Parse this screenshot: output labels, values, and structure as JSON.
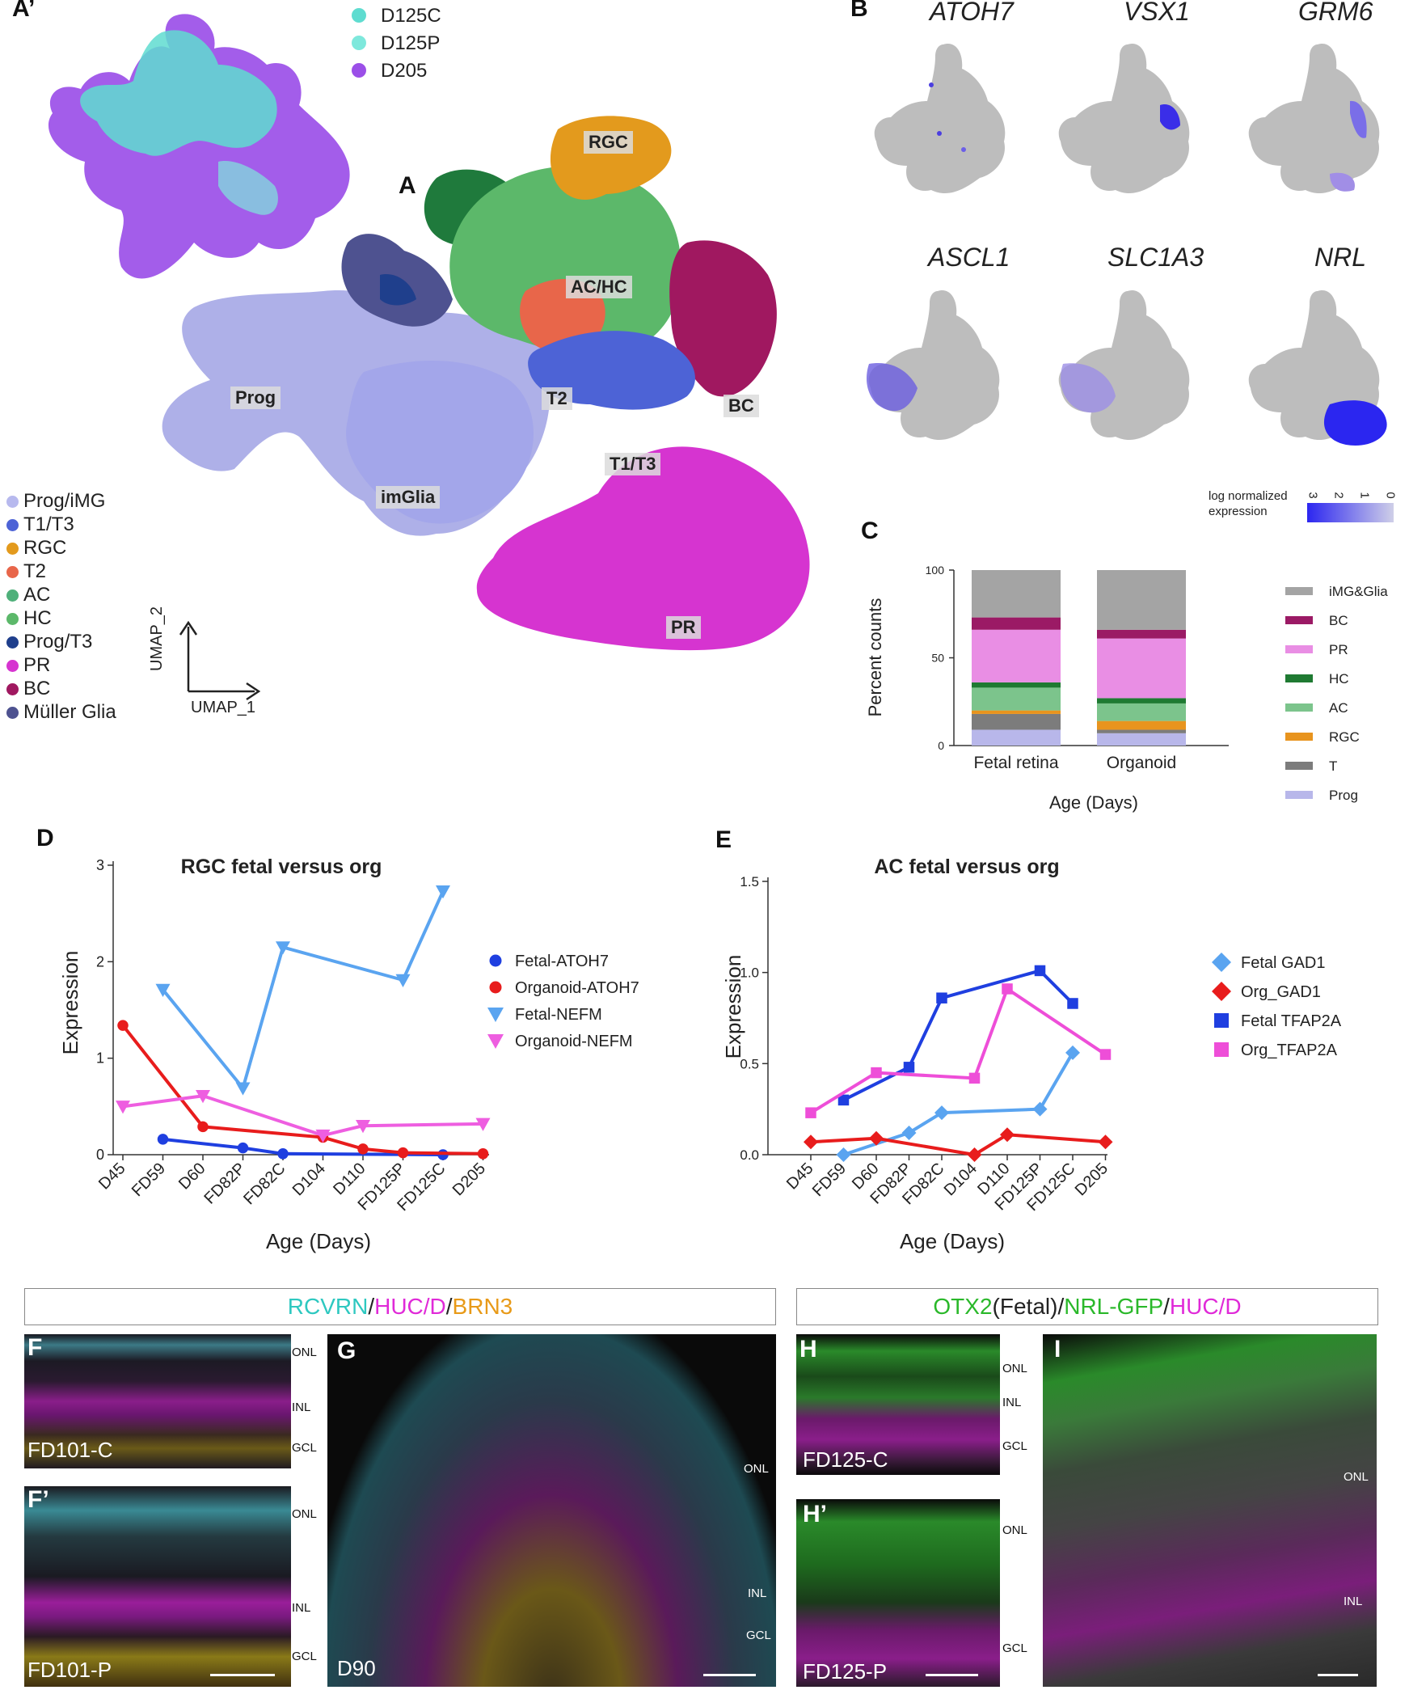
{
  "panelA": {
    "letter_main": "A",
    "letter_inset": "A’",
    "inset_legend": [
      {
        "label": "D125C",
        "color": "#5fdcd0"
      },
      {
        "label": "D125P",
        "color": "#7ee8dc"
      },
      {
        "label": "D205",
        "color": "#9b4fe8"
      }
    ],
    "clusters": [
      {
        "label": "RGC",
        "color": "#e39a1d"
      },
      {
        "label": "AC/HC",
        "color": "#5cb86a"
      },
      {
        "label": "Prog",
        "color": "#aeb0e8"
      },
      {
        "label": "T2",
        "color": "#e8664a"
      },
      {
        "label": "BC",
        "color": "#a01860"
      },
      {
        "label": "T1/T3",
        "color": "#4d63d6"
      },
      {
        "label": "imGlia",
        "color": "#a3a6ea"
      },
      {
        "label": "PR",
        "color": "#d634d0"
      }
    ],
    "legend": [
      {
        "label": "Prog/iMG",
        "color": "#b7b9ee"
      },
      {
        "label": "T1/T3",
        "color": "#4d63d6"
      },
      {
        "label": "RGC",
        "color": "#e39a1d"
      },
      {
        "label": "T2",
        "color": "#e8664a"
      },
      {
        "label": "AC",
        "color": "#4fb07a"
      },
      {
        "label": "HC",
        "color": "#5cb86a"
      },
      {
        "label": "Prog/T3",
        "color": "#1f3f8c"
      },
      {
        "label": "PR",
        "color": "#d634d0"
      },
      {
        "label": "BC",
        "color": "#a01860"
      },
      {
        "label": "Müller Glia",
        "color": "#4e5290"
      }
    ],
    "axis_y": "UMAP_2",
    "axis_x": "UMAP_1"
  },
  "panelB": {
    "letter": "B",
    "genes": [
      "ATOH7",
      "VSX1",
      "GRM6",
      "ASCL1",
      "SLC1A3",
      "NRL"
    ],
    "scale_label_1": "log normalized",
    "scale_label_2": "expression",
    "scale_ticks": [
      "3",
      "2",
      "1",
      "0"
    ]
  },
  "panelC": {
    "letter": "C",
    "chart_data": {
      "type": "bar",
      "stacked": true,
      "categories": [
        "Fetal retina",
        "Organoid"
      ],
      "ylabel": "Percent counts",
      "xlabel": "Age (Days)",
      "ylim": [
        0,
        100
      ],
      "yticks": [
        "0",
        "50",
        "100"
      ],
      "series": [
        {
          "name": "Prog",
          "color": "#b8b7ea",
          "values": [
            9,
            7
          ]
        },
        {
          "name": "T",
          "color": "#7c7c7c",
          "values": [
            9,
            2
          ]
        },
        {
          "name": "RGC",
          "color": "#e8941e",
          "values": [
            2,
            5
          ]
        },
        {
          "name": "AC",
          "color": "#7cc48c",
          "values": [
            13,
            10
          ]
        },
        {
          "name": "HC",
          "color": "#1f7a32",
          "values": [
            3,
            3
          ]
        },
        {
          "name": "PR",
          "color": "#e98ee4",
          "values": [
            30,
            34
          ]
        },
        {
          "name": "BC",
          "color": "#9b1a65",
          "values": [
            7,
            5
          ]
        },
        {
          "name": "iMG&Glia",
          "color": "#a4a4a4",
          "values": [
            27,
            34
          ]
        }
      ]
    }
  },
  "panelD": {
    "letter": "D",
    "chart_data": {
      "type": "line",
      "title": "RGC  fetal versus org",
      "ylabel": "Expression",
      "xlabel": "Age (Days)",
      "categories": [
        "D45",
        "FD59",
        "D60",
        "FD82P",
        "FD82C",
        "D104",
        "D110",
        "FD125P",
        "FD125C",
        "D205"
      ],
      "ylim": [
        0,
        3
      ],
      "yticks": [
        "0",
        "1",
        "2",
        "3"
      ],
      "series": [
        {
          "name": "Fetal-ATOH7",
          "color": "#1f3fe0",
          "marker": "circle",
          "points": [
            [
              1,
              0.16
            ],
            [
              3,
              0.07
            ],
            [
              4,
              0.01
            ],
            [
              8,
              0.0
            ]
          ]
        },
        {
          "name": "Organoid-ATOH7",
          "color": "#e81c1c",
          "marker": "circle",
          "points": [
            [
              0,
              1.34
            ],
            [
              2,
              0.29
            ],
            [
              5,
              0.18
            ],
            [
              6,
              0.06
            ],
            [
              7,
              0.02
            ],
            [
              9,
              0.01
            ]
          ]
        },
        {
          "name": "Fetal-NEFM",
          "color": "#5aa4f0",
          "marker": "tri-down",
          "points": [
            [
              1,
              1.71
            ],
            [
              3,
              0.69
            ],
            [
              4,
              2.15
            ],
            [
              7,
              1.81
            ],
            [
              8,
              2.73
            ]
          ]
        },
        {
          "name": "Organoid-NEFM",
          "color": "#ee5ee0",
          "marker": "tri-down",
          "points": [
            [
              0,
              0.5
            ],
            [
              2,
              0.61
            ],
            [
              5,
              0.2
            ],
            [
              6,
              0.3
            ],
            [
              9,
              0.32
            ]
          ]
        }
      ]
    }
  },
  "panelE": {
    "letter": "E",
    "chart_data": {
      "type": "line",
      "title": "AC fetal versus org",
      "ylabel": "Expression",
      "xlabel": "Age (Days)",
      "categories": [
        "D45",
        "FD59",
        "D60",
        "FD82P",
        "FD82C",
        "D104",
        "D110",
        "FD125P",
        "FD125C",
        "D205"
      ],
      "ylim": [
        0,
        1.5
      ],
      "yticks": [
        "0.0",
        "0.5",
        "1.0",
        "1.5"
      ],
      "series": [
        {
          "name": "Fetal GAD1",
          "color": "#5aa4f0",
          "marker": "diamond",
          "points": [
            [
              1,
              0.0
            ],
            [
              3,
              0.12
            ],
            [
              4,
              0.23
            ],
            [
              7,
              0.25
            ],
            [
              8,
              0.56
            ]
          ]
        },
        {
          "name": "Org_GAD1",
          "color": "#e81c1c",
          "marker": "diamond",
          "points": [
            [
              0,
              0.07
            ],
            [
              2,
              0.09
            ],
            [
              5,
              0.0
            ],
            [
              6,
              0.11
            ],
            [
              9,
              0.07
            ]
          ]
        },
        {
          "name": "Fetal TFAP2A",
          "color": "#1f3fe0",
          "marker": "square",
          "points": [
            [
              1,
              0.3
            ],
            [
              3,
              0.48
            ],
            [
              4,
              0.86
            ],
            [
              7,
              1.01
            ],
            [
              8,
              0.83
            ]
          ]
        },
        {
          "name": "Org_TFAP2A",
          "color": "#ee4ed8",
          "marker": "square",
          "points": [
            [
              0,
              0.23
            ],
            [
              2,
              0.45
            ],
            [
              5,
              0.42
            ],
            [
              6,
              0.91
            ],
            [
              9,
              0.55
            ]
          ]
        }
      ]
    }
  },
  "stainLeft": [
    {
      "text": "RCVRN",
      "color": "#2ec8c0"
    },
    {
      "text": "/",
      "color": "#222"
    },
    {
      "text": "HUC/D",
      "color": "#e02ad8"
    },
    {
      "text": "/",
      "color": "#222"
    },
    {
      "text": "BRN3",
      "color": "#e89a18"
    }
  ],
  "stainRight": [
    {
      "text": "OTX2",
      "color": "#2ab82a"
    },
    {
      "text": "(Fetal)",
      "color": "#222"
    },
    {
      "text": "/",
      "color": "#222"
    },
    {
      "text": "NRL-GFP",
      "color": "#2ab82a"
    },
    {
      "text": "/",
      "color": "#222"
    },
    {
      "text": "HUC/D",
      "color": "#e02ad8"
    }
  ],
  "micro": {
    "F": {
      "letter": "F",
      "sample": "FD101-C",
      "layers": [
        "ONL",
        "INL",
        "GCL"
      ]
    },
    "F2": {
      "letter": "F’",
      "sample": "FD101-P",
      "layers": [
        "ONL",
        "INL",
        "GCL"
      ]
    },
    "G": {
      "letter": "G",
      "sample": "D90",
      "layers": [
        "ONL",
        "INL",
        "GCL"
      ]
    },
    "H": {
      "letter": "H",
      "sample": "FD125-C",
      "layers": [
        "ONL",
        "INL",
        "GCL"
      ]
    },
    "H2": {
      "letter": "H’",
      "sample": "FD125-P",
      "layers": [
        "ONL",
        "GCL"
      ]
    },
    "I": {
      "letter": "I",
      "layers": [
        "ONL",
        "INL"
      ]
    }
  }
}
